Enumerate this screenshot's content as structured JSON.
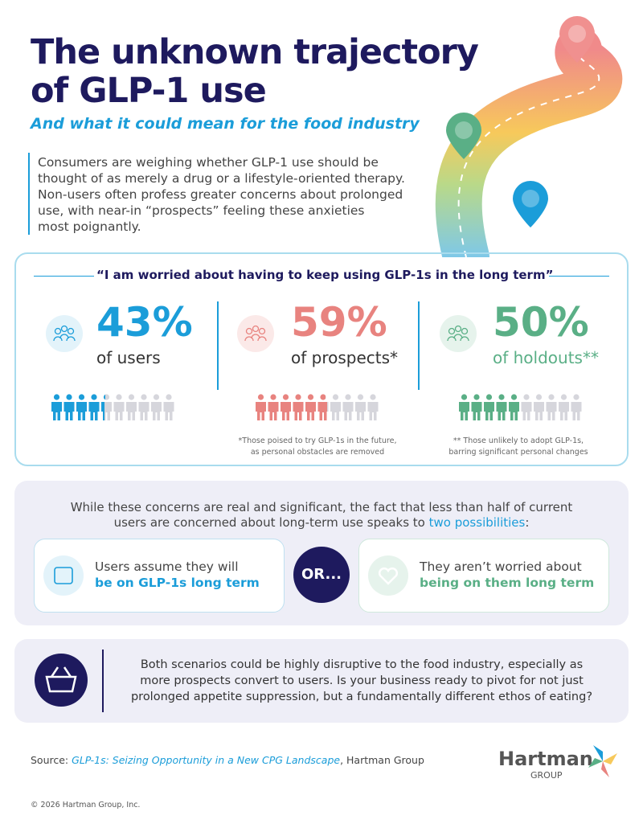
{
  "header": {
    "title_lines": [
      "The unknown trajectory",
      "of GLP-1 use"
    ],
    "subtitle": "And what it could mean for the food industry",
    "intro_lines": [
      "Consumers are weighing whether GLP-1 use should be",
      "thought of as merely a drug or a lifestyle-oriented therapy.",
      "Non-users often profess greater concerns about prolonged",
      "use, with near-in “prospects” feeling these anxieties",
      "most poignantly."
    ]
  },
  "stats": {
    "quote": "“I am worried about having to keep using GLP-1s in the long term”",
    "groups": [
      {
        "value": 43,
        "value_label": "43%",
        "label": "of users",
        "color": "#1b9dd9",
        "tint": "#e3f3fa"
      },
      {
        "value": 59,
        "value_label": "59%",
        "label": "of prospects*",
        "color": "#e8837f",
        "tint": "#fbe9e8",
        "footnote_lines": [
          "*Those poised to try GLP-1s in the future,",
          "as personal obstacles are removed"
        ]
      },
      {
        "value": 50,
        "value_label": "50%",
        "label": "of holdouts**",
        "color": "#5aaf86",
        "tint": "#e6f3ec",
        "footnote_lines": [
          "** Those unlikely to adopt GLP-1s,",
          "barring significant personal changes"
        ]
      }
    ]
  },
  "possibilities": {
    "line1": "While these concerns are real and significant, the fact that less than half of current",
    "line2": "users are concerned about long-term use speaks to",
    "highlight": "two possibilities",
    "end": ":",
    "or": "OR...",
    "options": [
      {
        "line1": "Users assume they will",
        "line2": "be on GLP-1s long term",
        "color": "#1b9dd9"
      },
      {
        "line1": "They aren’t worried about",
        "line2": "being on them long term",
        "color": "#5aaf86"
      }
    ]
  },
  "conclusion": {
    "lines": [
      "Both scenarios could be highly disruptive to the food industry, especially as",
      "more prospects convert to users. Is your business ready to pivot for not just",
      "prolonged appetite suppression, but a fundamentally different ethos of eating?"
    ]
  },
  "source": {
    "prefix": "Source:",
    "title": "GLP-1s: Seizing Opportunity in a New CPG Landscape",
    "suffix": ", Hartman Group"
  },
  "logo": {
    "name": "Hartman",
    "tagline": "GROUP"
  },
  "copyright": "© 2026 Hartman Group, Inc."
}
